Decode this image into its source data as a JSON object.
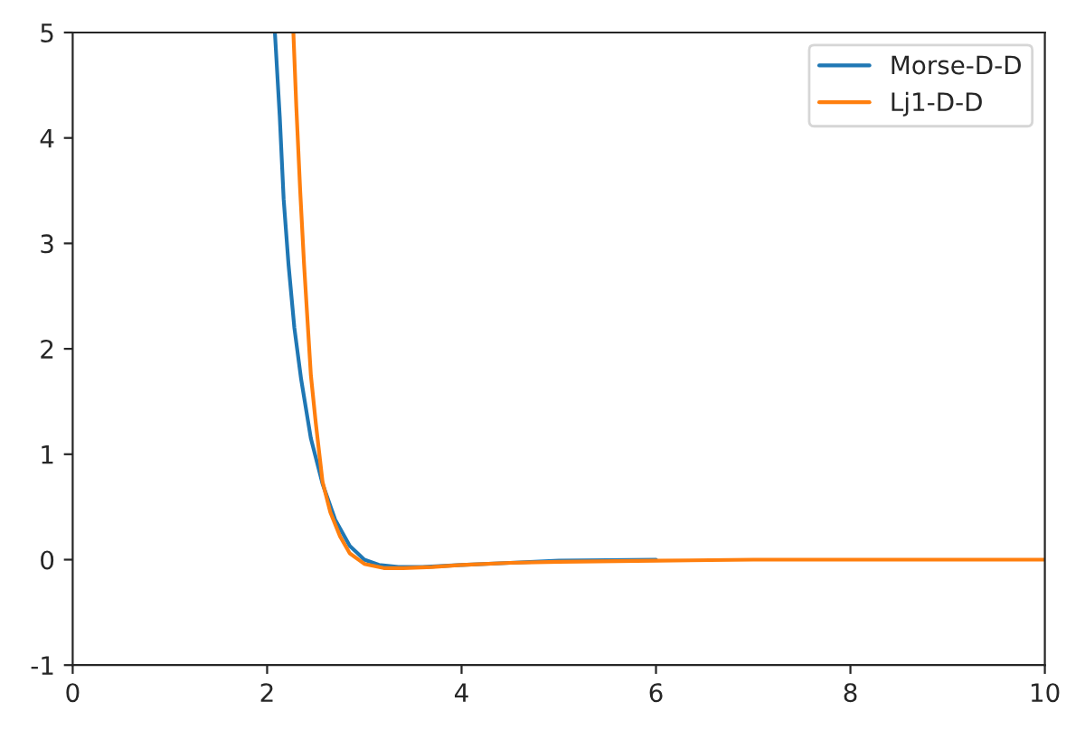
{
  "chart_data": {
    "type": "line",
    "xlim": [
      0,
      10
    ],
    "ylim": [
      -1,
      5
    ],
    "xticks": [
      0,
      2,
      4,
      6,
      8,
      10
    ],
    "yticks": [
      -1,
      0,
      1,
      2,
      3,
      4,
      5
    ],
    "grid": false,
    "legend": "top right",
    "marker": "none",
    "line_style": "solid",
    "series": [
      {
        "name": "Morse-D-D",
        "color": "#1f77b4",
        "x": [
          2.08,
          2.13,
          2.17,
          2.22,
          2.28,
          2.35,
          2.45,
          2.57,
          2.7,
          2.85,
          3.0,
          3.15,
          3.35,
          3.6,
          4.0,
          4.5,
          5.0,
          6.0
        ],
        "values": [
          5.0,
          4.2,
          3.42,
          2.8,
          2.2,
          1.71,
          1.15,
          0.72,
          0.38,
          0.13,
          0.0,
          -0.05,
          -0.07,
          -0.07,
          -0.05,
          -0.03,
          -0.01,
          0.0
        ]
      },
      {
        "name": "Lj1-D-D",
        "color": "#ff7f0e",
        "x": [
          2.27,
          2.3,
          2.34,
          2.38,
          2.42,
          2.45,
          2.5,
          2.57,
          2.65,
          2.75,
          2.85,
          3.0,
          3.2,
          3.4,
          3.7,
          4.0,
          4.5,
          5.0,
          6.0,
          7.0,
          8.0,
          10.0
        ],
        "values": [
          5.0,
          4.3,
          3.5,
          2.8,
          2.2,
          1.75,
          1.3,
          0.74,
          0.45,
          0.22,
          0.06,
          -0.04,
          -0.08,
          -0.08,
          -0.07,
          -0.05,
          -0.03,
          -0.02,
          -0.01,
          0.0,
          0.0,
          0.0
        ]
      }
    ]
  }
}
